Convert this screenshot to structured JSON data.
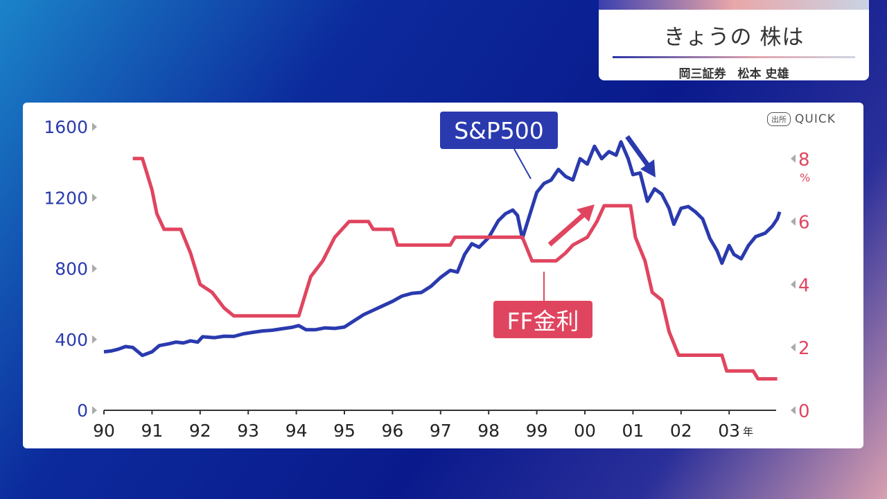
{
  "header": {
    "title": "きょうの 株は",
    "subtitle": "岡三証券　松本 史雄"
  },
  "source": {
    "badge": "出所",
    "name": "QUICK"
  },
  "colors": {
    "sp500": "#2a3aae",
    "ff": "#e0455f"
  },
  "chart_data": {
    "type": "line",
    "title": "",
    "x_ticks": [
      "90",
      "91",
      "92",
      "93",
      "94",
      "95",
      "96",
      "97",
      "98",
      "99",
      "00",
      "01",
      "02",
      "03"
    ],
    "x_unit": "年",
    "xlim": [
      1990,
      2004
    ],
    "left_axis": {
      "ticks": [
        "0",
        "400",
        "800",
        "1200",
        "1600"
      ],
      "ylim": [
        0,
        1600
      ]
    },
    "right_axis": {
      "ticks": [
        "0",
        "2",
        "4",
        "6",
        "8"
      ],
      "unit": "%",
      "ylim": [
        0,
        8
      ]
    },
    "series": [
      {
        "name": "S&P500",
        "axis": "left",
        "points": [
          [
            1990.0,
            330
          ],
          [
            1990.15,
            335
          ],
          [
            1990.3,
            345
          ],
          [
            1990.45,
            360
          ],
          [
            1990.6,
            355
          ],
          [
            1990.8,
            310
          ],
          [
            1991.0,
            330
          ],
          [
            1991.15,
            365
          ],
          [
            1991.35,
            375
          ],
          [
            1991.5,
            385
          ],
          [
            1991.65,
            380
          ],
          [
            1991.8,
            392
          ],
          [
            1991.95,
            385
          ],
          [
            1992.05,
            415
          ],
          [
            1992.3,
            410
          ],
          [
            1992.5,
            418
          ],
          [
            1992.7,
            417
          ],
          [
            1992.9,
            432
          ],
          [
            1993.1,
            440
          ],
          [
            1993.3,
            448
          ],
          [
            1993.5,
            452
          ],
          [
            1993.7,
            460
          ],
          [
            1993.9,
            468
          ],
          [
            1994.05,
            478
          ],
          [
            1994.2,
            455
          ],
          [
            1994.4,
            455
          ],
          [
            1994.6,
            465
          ],
          [
            1994.8,
            462
          ],
          [
            1995.0,
            470
          ],
          [
            1995.2,
            505
          ],
          [
            1995.4,
            540
          ],
          [
            1995.6,
            565
          ],
          [
            1995.8,
            590
          ],
          [
            1996.0,
            615
          ],
          [
            1996.2,
            645
          ],
          [
            1996.4,
            660
          ],
          [
            1996.6,
            665
          ],
          [
            1996.8,
            700
          ],
          [
            1997.0,
            750
          ],
          [
            1997.2,
            790
          ],
          [
            1997.35,
            780
          ],
          [
            1997.5,
            880
          ],
          [
            1997.65,
            940
          ],
          [
            1997.8,
            920
          ],
          [
            1998.0,
            975
          ],
          [
            1998.2,
            1070
          ],
          [
            1998.35,
            1110
          ],
          [
            1998.5,
            1130
          ],
          [
            1998.6,
            1100
          ],
          [
            1998.7,
            970
          ],
          [
            1998.85,
            1100
          ],
          [
            1999.0,
            1230
          ],
          [
            1999.15,
            1280
          ],
          [
            1999.3,
            1300
          ],
          [
            1999.45,
            1360
          ],
          [
            1999.6,
            1320
          ],
          [
            1999.75,
            1300
          ],
          [
            1999.9,
            1420
          ],
          [
            2000.05,
            1390
          ],
          [
            2000.2,
            1490
          ],
          [
            2000.35,
            1420
          ],
          [
            2000.5,
            1460
          ],
          [
            2000.65,
            1440
          ],
          [
            2000.75,
            1515
          ],
          [
            2000.9,
            1420
          ],
          [
            2001.0,
            1330
          ],
          [
            2001.15,
            1340
          ],
          [
            2001.3,
            1180
          ],
          [
            2001.45,
            1250
          ],
          [
            2001.6,
            1220
          ],
          [
            2001.75,
            1140
          ],
          [
            2001.85,
            1050
          ],
          [
            2002.0,
            1140
          ],
          [
            2002.15,
            1150
          ],
          [
            2002.3,
            1120
          ],
          [
            2002.45,
            1080
          ],
          [
            2002.6,
            970
          ],
          [
            2002.75,
            900
          ],
          [
            2002.85,
            830
          ],
          [
            2003.0,
            930
          ],
          [
            2003.1,
            880
          ],
          [
            2003.25,
            855
          ],
          [
            2003.4,
            930
          ],
          [
            2003.55,
            980
          ],
          [
            2003.75,
            1000
          ],
          [
            2003.9,
            1040
          ],
          [
            2004.0,
            1080
          ],
          [
            2004.05,
            1120
          ]
        ]
      },
      {
        "name": "FF金利",
        "axis": "right",
        "points": [
          [
            1990.6,
            8.0
          ],
          [
            1990.8,
            8.0
          ],
          [
            1990.9,
            7.5
          ],
          [
            1991.0,
            7.0
          ],
          [
            1991.1,
            6.25
          ],
          [
            1991.25,
            5.75
          ],
          [
            1991.6,
            5.75
          ],
          [
            1991.8,
            5.0
          ],
          [
            1992.0,
            4.0
          ],
          [
            1992.25,
            3.75
          ],
          [
            1992.5,
            3.25
          ],
          [
            1992.7,
            3.0
          ],
          [
            1994.05,
            3.0
          ],
          [
            1994.15,
            3.5
          ],
          [
            1994.3,
            4.25
          ],
          [
            1994.55,
            4.75
          ],
          [
            1994.8,
            5.5
          ],
          [
            1995.1,
            6.0
          ],
          [
            1995.5,
            6.0
          ],
          [
            1995.6,
            5.75
          ],
          [
            1996.0,
            5.75
          ],
          [
            1996.1,
            5.25
          ],
          [
            1997.2,
            5.25
          ],
          [
            1997.3,
            5.5
          ],
          [
            1998.7,
            5.5
          ],
          [
            1998.9,
            4.75
          ],
          [
            1999.4,
            4.75
          ],
          [
            1999.6,
            5.0
          ],
          [
            1999.75,
            5.25
          ],
          [
            2000.05,
            5.5
          ],
          [
            2000.25,
            6.0
          ],
          [
            2000.4,
            6.5
          ],
          [
            2000.95,
            6.5
          ],
          [
            2001.05,
            5.5
          ],
          [
            2001.25,
            4.75
          ],
          [
            2001.4,
            3.75
          ],
          [
            2001.6,
            3.5
          ],
          [
            2001.75,
            2.5
          ],
          [
            2001.95,
            1.75
          ],
          [
            2002.85,
            1.75
          ],
          [
            2002.95,
            1.25
          ],
          [
            2003.5,
            1.25
          ],
          [
            2003.6,
            1.0
          ],
          [
            2004.0,
            1.0
          ]
        ]
      }
    ],
    "annotations": [
      {
        "text": "S&P500",
        "series": "S&P500"
      },
      {
        "text": "FF金利",
        "series": "FF金利"
      }
    ]
  }
}
